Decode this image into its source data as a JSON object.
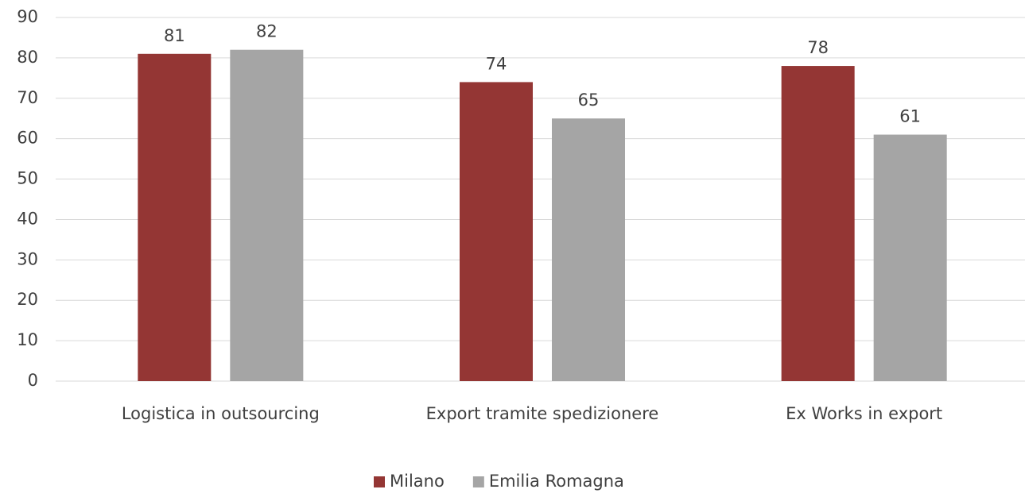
{
  "chart_data": {
    "type": "bar",
    "categories": [
      "Logistica in outsourcing",
      "Export tramite spedizionere",
      "Ex Works in export"
    ],
    "series": [
      {
        "name": "Milano",
        "color": "#943634",
        "values": [
          81,
          74,
          78
        ]
      },
      {
        "name": "Emilia Romagna",
        "color": "#a5a5a5",
        "values": [
          82,
          65,
          61
        ]
      }
    ],
    "ylim": [
      0,
      90
    ],
    "yticks": [
      0,
      10,
      20,
      30,
      40,
      50,
      60,
      70,
      80,
      90
    ],
    "grid": true,
    "legend": "bottom"
  }
}
